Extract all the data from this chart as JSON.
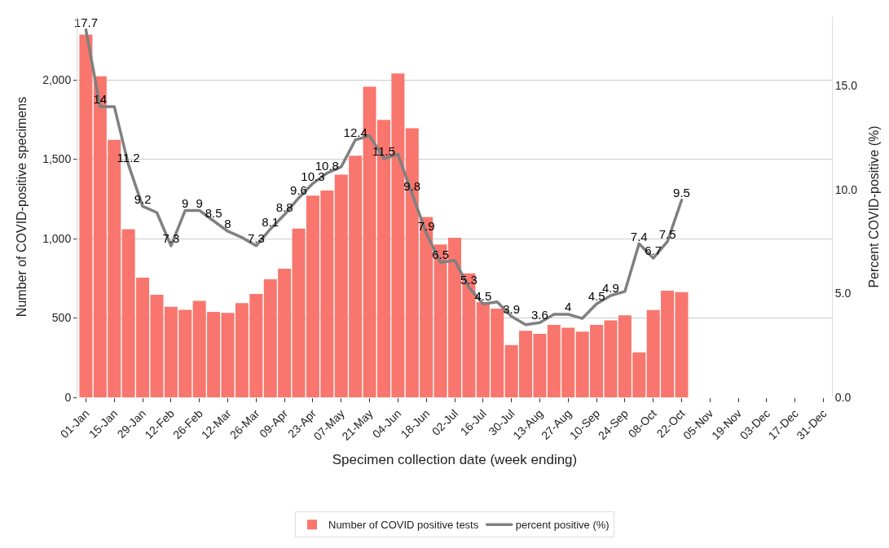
{
  "chart_data": {
    "type": "bar",
    "xlabel": "Specimen collection date (week ending)",
    "ylabel": "Number of COVID-positive specimens",
    "y2label": "Percent COVID-positive (%)",
    "categories": [
      "01-Jan",
      null,
      "15-Jan",
      null,
      "29-Jan",
      null,
      "12-Feb",
      null,
      "26-Feb",
      null,
      "12-Mar",
      null,
      "26-Mar",
      null,
      "09-Apr",
      null,
      "23-Apr",
      null,
      "07-May",
      null,
      "21-May",
      null,
      "04-Jun",
      null,
      "18-Jun",
      null,
      "02-Jul",
      null,
      "16-Jul",
      null,
      "30-Jul",
      null,
      "13-Aug",
      null,
      "27-Aug",
      null,
      "10-Sep",
      null,
      "24-Sep",
      null,
      "08-Oct",
      null,
      "22-Oct",
      null,
      "05-Nov",
      null,
      "19-Nov",
      null,
      "03-Dec",
      null,
      "17-Dec",
      null,
      "31-Dec"
    ],
    "series": [
      {
        "name": "Number of COVID positive tests",
        "color": "#f8766d",
        "values": [
          2284,
          2022,
          1622,
          1059,
          754,
          646,
          570,
          551,
          608,
          538,
          532,
          594,
          651,
          744,
          810,
          1063,
          1270,
          1302,
          1402,
          1522,
          1956,
          1748,
          2040,
          1695,
          1136,
          963,
          1005,
          781,
          600,
          559,
          330,
          419,
          400,
          456,
          438,
          414,
          456,
          484,
          517,
          283,
          550,
          672,
          663,
          null,
          null,
          null,
          null,
          null,
          null,
          null,
          null,
          null,
          null
        ]
      },
      {
        "name": "percent positive (%)",
        "type": "line",
        "axis": "y2",
        "color": "#808080",
        "values": [
          17.7,
          14.0,
          14.0,
          11.2,
          9.2,
          8.9,
          7.3,
          9,
          9,
          8.5,
          8,
          7.7,
          7.3,
          8.1,
          8.8,
          9.6,
          10.3,
          10.8,
          11.1,
          12.4,
          12.6,
          11.5,
          11.7,
          9.8,
          7.9,
          6.5,
          6.6,
          5.3,
          4.5,
          4.6,
          3.9,
          3.5,
          3.6,
          4.0,
          4,
          3.8,
          4.5,
          4.9,
          5.1,
          7.4,
          6.7,
          7.5,
          9.5,
          null,
          null,
          null,
          null,
          null,
          null,
          null,
          null,
          null,
          null
        ],
        "value_labels": [
          "17.7",
          "14",
          null,
          "11.2",
          "9.2",
          null,
          "7.3",
          "9",
          "9",
          "8.5",
          "8",
          null,
          "7.3",
          "8.1",
          "8.8",
          "9.6",
          "10.3",
          "10.8",
          null,
          "12.4",
          null,
          "11.5",
          null,
          "9.8",
          "7.9",
          "6.5",
          null,
          "5.3",
          "4.5",
          null,
          "3.9",
          null,
          "3.6",
          null,
          "4",
          null,
          "4.5",
          "4.9",
          null,
          "7.4",
          "6.7",
          "7.5",
          "9.5",
          null,
          null,
          null,
          null,
          null,
          null,
          null,
          null,
          null,
          null
        ]
      }
    ],
    "ylim": [
      0,
      2400
    ],
    "yticks": [
      0,
      500,
      {
        "value": 1000,
        "label": "1,000"
      },
      {
        "value": 1500,
        "label": "1,500"
      },
      {
        "value": 2000,
        "label": "2,000"
      }
    ],
    "y2lim": [
      0,
      18.35
    ],
    "y2ticks": [
      {
        "value": 0,
        "label": "0.0"
      },
      {
        "value": 5,
        "label": "5.0"
      },
      {
        "value": 10,
        "label": "10.0"
      },
      {
        "value": 15,
        "label": "15.0"
      }
    ],
    "grid": "y",
    "legend": "bottom",
    "marker": "none",
    "line_style": "solid"
  }
}
